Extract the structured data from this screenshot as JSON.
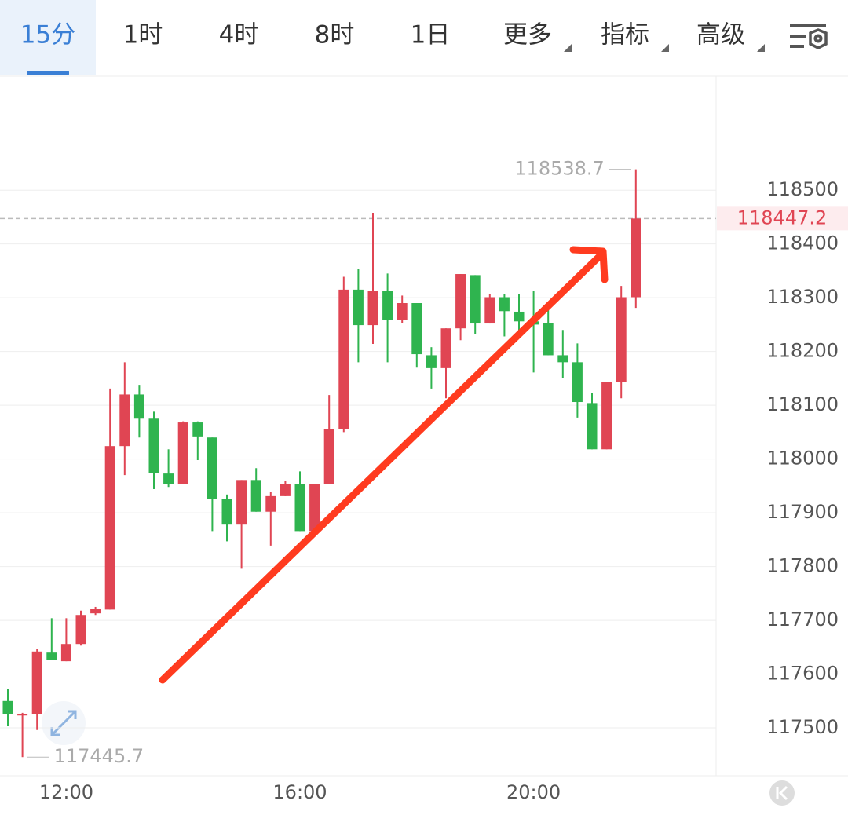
{
  "toolbar": {
    "tabs": [
      "15分",
      "1时",
      "4时",
      "8时",
      "1日",
      "更多",
      "指标",
      "高级"
    ]
  },
  "chart_data": {
    "type": "candlestick",
    "categories": [
      null,
      null,
      null,
      null,
      "12:00",
      null,
      null,
      null,
      null,
      null,
      null,
      null,
      null,
      null,
      null,
      null,
      null,
      null,
      null,
      null,
      "16:00",
      null,
      null,
      null,
      null,
      null,
      null,
      null,
      null,
      null,
      null,
      null,
      null,
      null,
      null,
      null,
      "20:00",
      null,
      null,
      null,
      null,
      null,
      null,
      null
    ],
    "open": [
      117550,
      117524,
      117525,
      117640,
      117624,
      117656,
      117713,
      117720,
      118024,
      118120,
      118075,
      117973,
      117953,
      118068,
      118040,
      117925,
      117878,
      117961,
      117902,
      117931,
      117953,
      117866,
      117953,
      118055,
      118315,
      118249,
      118312,
      118258,
      118290,
      118193,
      118169,
      118243,
      118342,
      118252,
      118301,
      118274,
      118256,
      118253,
      118193,
      118180,
      118104,
      118018,
      118144,
      118301
    ],
    "high": [
      117573,
      117528,
      117646,
      117704,
      117704,
      117718,
      117725,
      118131,
      118180,
      118138,
      118088,
      118018,
      118070,
      118070,
      118040,
      117934,
      117961,
      117983,
      117939,
      117960,
      117977,
      117953,
      118119,
      118339,
      118354,
      118458,
      118345,
      118304,
      118290,
      118208,
      118243,
      118344,
      118342,
      118307,
      118307,
      118307,
      118313,
      118282,
      118240,
      118215,
      118123,
      118144,
      118322,
      118538.7
    ],
    "low": [
      117503,
      117445.7,
      117496,
      117626,
      117624,
      117653,
      117710,
      117720,
      117970,
      118040,
      117944,
      117948,
      117953,
      117998,
      117866,
      117847,
      117796,
      117902,
      117839,
      117931,
      117866,
      117866,
      117953,
      118050,
      118180,
      118214,
      118180,
      118253,
      118170,
      118131,
      118113,
      118221,
      118233,
      118252,
      118228,
      118227,
      118161,
      118193,
      118151,
      118077,
      118018,
      118018,
      118113,
      118281
    ],
    "close": [
      117525,
      117526,
      117642,
      117626,
      117656,
      117710,
      117722,
      118024,
      118120,
      118075,
      117974,
      117953,
      118068,
      118042,
      117925,
      117878,
      117961,
      117902,
      117931,
      117953,
      117866,
      117953,
      118056,
      118315,
      118249,
      118312,
      118258,
      118290,
      118195,
      118169,
      118243,
      118344,
      118252,
      118301,
      118275,
      118256,
      118250,
      118193,
      118180,
      118106,
      118018,
      118144,
      118301,
      118447.2
    ],
    "up_color": "#e04553",
    "down_color": "#2fb44f",
    "ylim": [
      117411,
      118712
    ],
    "yticks": [
      117500,
      117600,
      117700,
      117800,
      117900,
      118000,
      118100,
      118200,
      118300,
      118400,
      118500
    ],
    "grid": true,
    "max_label": 118538.7,
    "min_label": 117445.7,
    "last_price": 118447.2
  }
}
